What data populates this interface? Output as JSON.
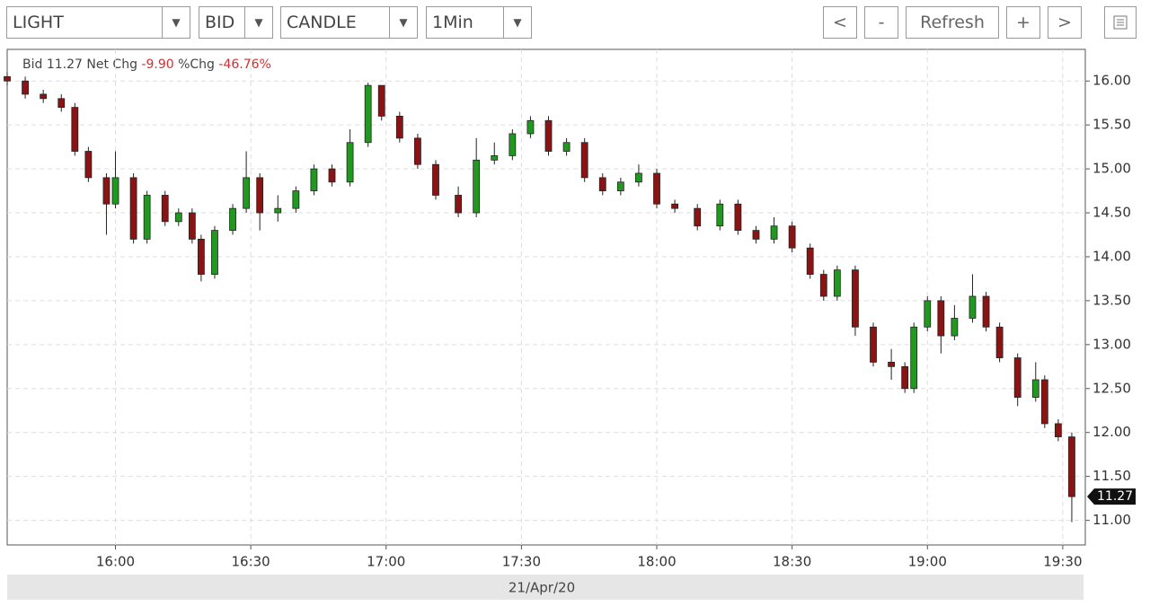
{
  "toolbar": {
    "dropdowns": [
      "LIGHT",
      "BID",
      "CANDLE",
      "1Min"
    ],
    "buttons": [
      "<",
      "-",
      "Refresh",
      "+",
      ">"
    ]
  },
  "chart_data": {
    "type": "candlestick",
    "info": {
      "bid_label": "Bid",
      "bid": "11.27",
      "net_label": "Net Chg",
      "net": "-9.90",
      "pct_label": "%Chg",
      "pct": "-46.76%"
    },
    "x_axis_label": "21/Apr/20",
    "x": [
      "15:36",
      "15:40",
      "15:44",
      "15:48",
      "15:51",
      "15:54",
      "15:58",
      "16:00",
      "16:04",
      "16:07",
      "16:11",
      "16:14",
      "16:17",
      "16:19",
      "16:22",
      "16:26",
      "16:29",
      "16:32",
      "16:36",
      "16:40",
      "16:44",
      "16:48",
      "16:52",
      "16:56",
      "16:59",
      "17:03",
      "17:07",
      "17:11",
      "17:16",
      "17:20",
      "17:24",
      "17:28",
      "17:32",
      "17:36",
      "17:40",
      "17:44",
      "17:48",
      "17:52",
      "17:56",
      "18:00",
      "18:04",
      "18:09",
      "18:14",
      "18:18",
      "18:22",
      "18:26",
      "18:30",
      "18:34",
      "18:37",
      "18:40",
      "18:44",
      "18:48",
      "18:52",
      "18:55",
      "18:57",
      "19:00",
      "19:03",
      "19:06",
      "19:10",
      "19:13",
      "19:16",
      "19:20",
      "19:24",
      "19:26",
      "19:29",
      "19:32"
    ],
    "open": [
      16.05,
      16.0,
      15.85,
      15.8,
      15.7,
      15.2,
      14.9,
      14.6,
      14.9,
      14.2,
      14.7,
      14.4,
      14.5,
      14.2,
      13.8,
      14.3,
      14.55,
      14.9,
      14.5,
      14.55,
      14.75,
      15.0,
      14.85,
      15.3,
      15.95,
      15.6,
      15.35,
      15.05,
      14.7,
      14.5,
      15.1,
      15.15,
      15.4,
      15.55,
      15.2,
      15.3,
      14.9,
      14.75,
      14.85,
      14.95,
      14.6,
      14.55,
      14.35,
      14.6,
      14.3,
      14.2,
      14.35,
      14.1,
      13.8,
      13.55,
      13.85,
      13.2,
      12.8,
      12.75,
      12.5,
      13.2,
      13.5,
      13.1,
      13.3,
      13.55,
      13.2,
      12.85,
      12.4,
      12.6,
      12.1,
      11.95
    ],
    "high": [
      16.1,
      16.05,
      15.9,
      15.85,
      15.75,
      15.25,
      14.95,
      15.2,
      14.95,
      14.75,
      14.75,
      14.55,
      14.55,
      14.25,
      14.35,
      14.6,
      15.2,
      14.95,
      14.7,
      14.8,
      15.05,
      15.05,
      15.45,
      15.98,
      15.95,
      15.65,
      15.4,
      15.1,
      14.8,
      15.35,
      15.3,
      15.45,
      15.6,
      15.6,
      15.35,
      15.35,
      14.95,
      14.9,
      15.05,
      15.0,
      14.65,
      14.6,
      14.65,
      14.65,
      14.35,
      14.45,
      14.4,
      14.15,
      13.85,
      13.9,
      13.9,
      13.25,
      12.95,
      12.8,
      13.25,
      13.55,
      13.55,
      13.45,
      13.8,
      13.6,
      13.25,
      12.9,
      12.8,
      12.65,
      12.15,
      12.0
    ],
    "low": [
      15.95,
      15.8,
      15.75,
      15.65,
      15.15,
      14.85,
      14.25,
      14.55,
      14.15,
      14.15,
      14.35,
      14.35,
      14.15,
      13.72,
      13.75,
      14.25,
      14.5,
      14.3,
      14.4,
      14.5,
      14.7,
      14.8,
      14.8,
      15.25,
      15.55,
      15.3,
      15.0,
      14.65,
      14.45,
      14.45,
      15.05,
      15.1,
      15.35,
      15.15,
      15.15,
      14.85,
      14.7,
      14.7,
      14.8,
      14.55,
      14.5,
      14.3,
      14.3,
      14.25,
      14.15,
      14.15,
      14.05,
      13.75,
      13.5,
      13.5,
      13.1,
      12.75,
      12.6,
      12.45,
      12.45,
      13.15,
      12.9,
      13.05,
      13.25,
      13.15,
      12.8,
      12.3,
      12.35,
      12.05,
      11.9,
      10.98
    ],
    "close": [
      16.0,
      15.85,
      15.8,
      15.7,
      15.2,
      14.9,
      14.6,
      14.9,
      14.2,
      14.7,
      14.4,
      14.5,
      14.2,
      13.8,
      14.3,
      14.55,
      14.9,
      14.5,
      14.55,
      14.75,
      15.0,
      14.85,
      15.3,
      15.95,
      15.6,
      15.35,
      15.05,
      14.7,
      14.5,
      15.1,
      15.15,
      15.4,
      15.55,
      15.2,
      15.3,
      14.9,
      14.75,
      14.85,
      14.95,
      14.6,
      14.55,
      14.35,
      14.6,
      14.3,
      14.2,
      14.35,
      14.1,
      13.8,
      13.55,
      13.85,
      13.2,
      12.8,
      12.75,
      12.5,
      13.2,
      13.5,
      13.1,
      13.3,
      13.55,
      13.2,
      12.85,
      12.4,
      12.6,
      12.1,
      11.95,
      11.27
    ],
    "up_color": "#1f9a1f",
    "down_color": "#8a1414",
    "xlim": [
      "15:36",
      "19:35"
    ],
    "xticks": [
      "16:00",
      "16:30",
      "17:00",
      "17:30",
      "18:00",
      "18:30",
      "19:00",
      "19:30"
    ],
    "ylim": [
      10.72,
      16.36
    ],
    "yticks": [
      {
        "value": 11,
        "label": "11.00"
      },
      {
        "value": 11.5,
        "label": "11.50"
      },
      {
        "value": 12,
        "label": "12.00"
      },
      {
        "value": 12.5,
        "label": "12.50"
      },
      {
        "value": 13,
        "label": "13.00"
      },
      {
        "value": 13.5,
        "label": "13.50"
      },
      {
        "value": 14,
        "label": "14.00"
      },
      {
        "value": 14.5,
        "label": "14.50"
      },
      {
        "value": 15,
        "label": "15.00"
      },
      {
        "value": 15.5,
        "label": "15.50"
      },
      {
        "value": 16,
        "label": "16.00"
      }
    ],
    "grid": true
  }
}
